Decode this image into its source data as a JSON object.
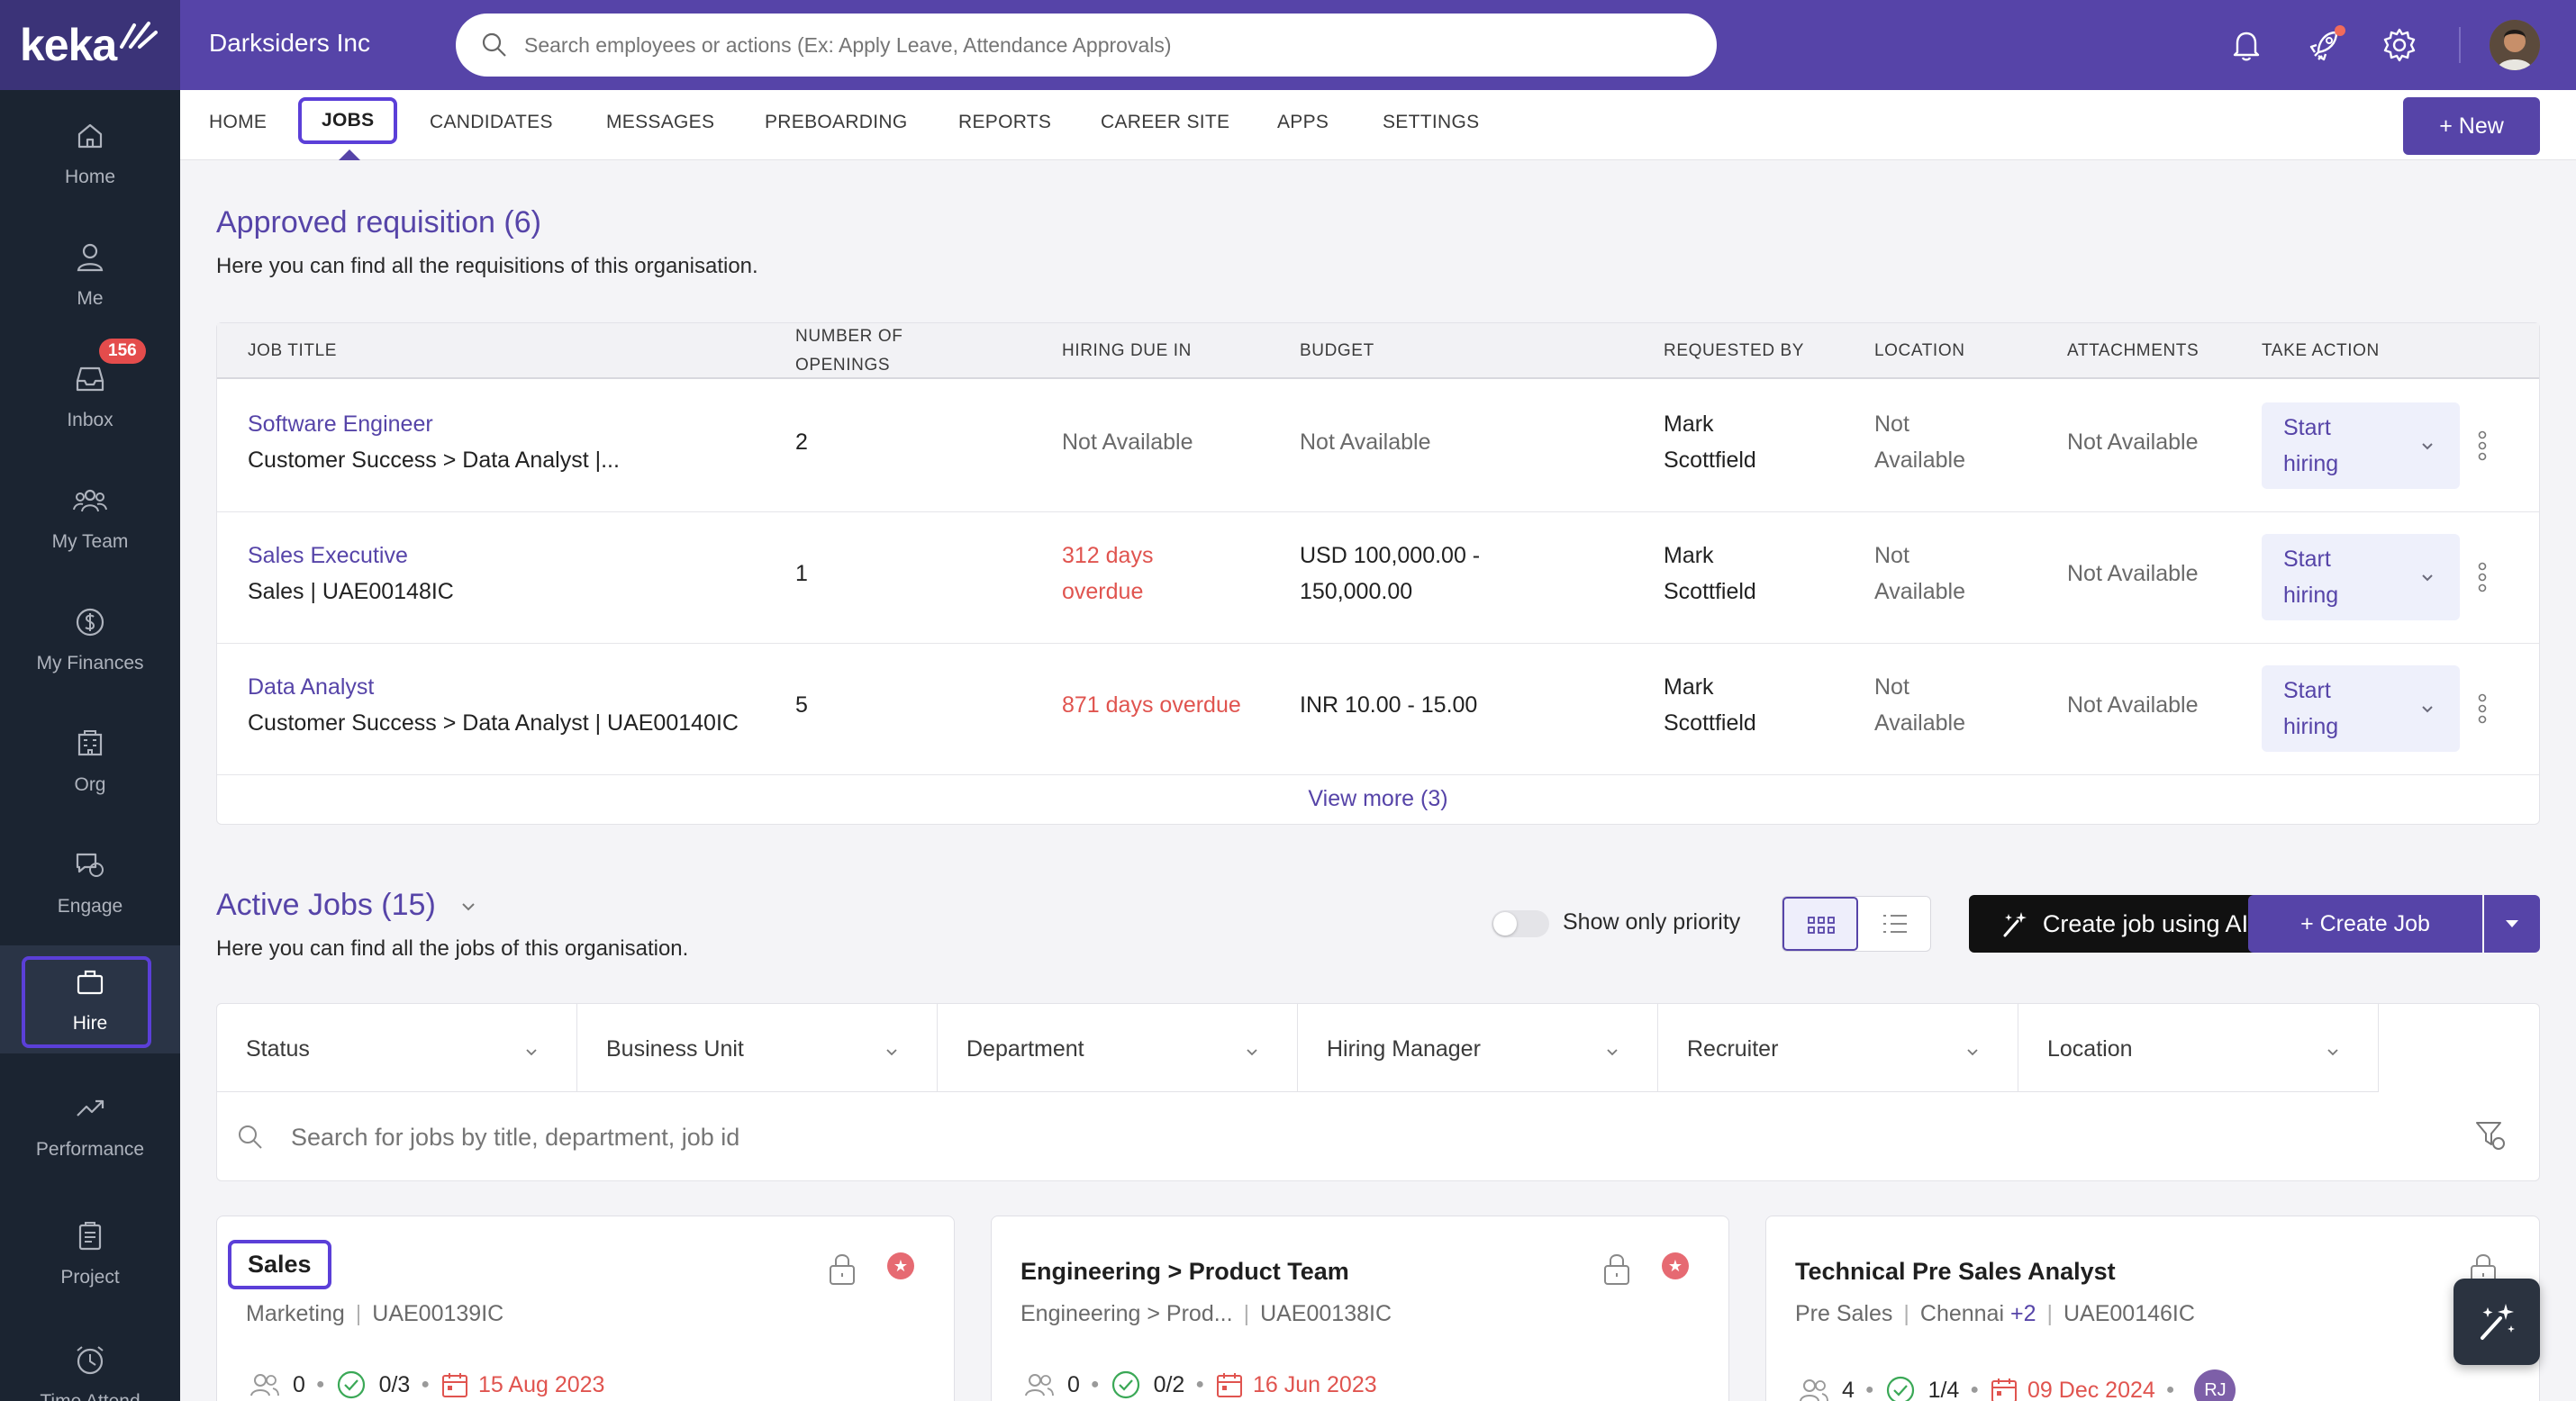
{
  "app": {
    "logo": "keka",
    "org_name": "Darksiders Inc",
    "search_placeholder": "Search employees or actions (Ex: Apply Leave, Attendance Approvals)"
  },
  "colors": {
    "brand": "#5644a8",
    "sidebar": "#1b2431",
    "overdue": "#e0544f",
    "highlight": "#5b3fd8"
  },
  "sidebar": {
    "items": [
      {
        "label": "Home",
        "icon": "home-icon"
      },
      {
        "label": "Me",
        "icon": "user-icon"
      },
      {
        "label": "Inbox",
        "icon": "inbox-icon",
        "badge": "156"
      },
      {
        "label": "My Team",
        "icon": "team-icon"
      },
      {
        "label": "My Finances",
        "icon": "dollar-icon"
      },
      {
        "label": "Org",
        "icon": "org-icon"
      },
      {
        "label": "Engage",
        "icon": "chat-icon"
      },
      {
        "label": "Hire",
        "icon": "briefcase-icon",
        "active": true
      },
      {
        "label": "Performance",
        "icon": "trend-icon"
      },
      {
        "label": "Project",
        "icon": "clipboard-icon"
      },
      {
        "label": "Time Attend",
        "icon": "clock-icon"
      }
    ]
  },
  "subnav": {
    "tabs": [
      "HOME",
      "JOBS",
      "CANDIDATES",
      "MESSAGES",
      "PREBOARDING",
      "REPORTS",
      "CAREER SITE",
      "APPS",
      "SETTINGS"
    ],
    "active": "JOBS",
    "new_label": "+ New"
  },
  "requisitions": {
    "title": "Approved requisition (6)",
    "subtitle": "Here you can find all the requisitions of this organisation.",
    "headers": {
      "job_title": "JOB TITLE",
      "openings_1": "NUMBER OF",
      "openings_2": "OPENINGS",
      "due": "HIRING DUE IN",
      "budget": "BUDGET",
      "requested": "REQUESTED BY",
      "location": "LOCATION",
      "attachments": "ATTACHMENTS",
      "action": "TAKE ACTION"
    },
    "rows": [
      {
        "title": "Software Engineer",
        "sub": "Customer Success > Data Analyst |...",
        "openings": "2",
        "due_1": "Not Available",
        "due_2": "",
        "budget_1": "Not Available",
        "budget_2": "",
        "req_1": "Mark",
        "req_2": "Scottfield",
        "loc_1": "Not",
        "loc_2": "Available",
        "attach": "Not Available",
        "action_1": "Start",
        "action_2": "hiring"
      },
      {
        "title": "Sales Executive",
        "sub": "Sales | UAE00148IC",
        "openings": "1",
        "due_1": "312 days",
        "due_2": "overdue",
        "budget_1": "USD 100,000.00 -",
        "budget_2": "150,000.00",
        "req_1": "Mark",
        "req_2": "Scottfield",
        "loc_1": "Not",
        "loc_2": "Available",
        "attach": "Not Available",
        "action_1": "Start",
        "action_2": "hiring"
      },
      {
        "title": "Data Analyst",
        "sub": "Customer Success > Data Analyst | UAE00140IC",
        "openings": "5",
        "due_1": "871 days overdue",
        "due_2": "",
        "budget_1": "INR 10.00 - 15.00",
        "budget_2": "",
        "req_1": "Mark",
        "req_2": "Scottfield",
        "loc_1": "Not",
        "loc_2": "Available",
        "attach": "Not Available",
        "action_1": "Start",
        "action_2": "hiring"
      }
    ],
    "view_more": "View more (3)"
  },
  "active_jobs": {
    "title": "Active Jobs (15)",
    "subtitle": "Here you can find all the jobs of this organisation.",
    "priority_label": "Show only priority",
    "ai_button": "Create job using AI",
    "create_button": "+ Create Job",
    "filters": [
      "Status",
      "Business Unit",
      "Department",
      "Hiring Manager",
      "Recruiter",
      "Location"
    ],
    "search_placeholder": "Search for jobs by title, department, job id",
    "cards": [
      {
        "title": "Sales",
        "dept": "Marketing",
        "id": "UAE00139IC",
        "extra": "",
        "candidates": "0",
        "progress": "0/3",
        "date": "15 Aug 2023"
      },
      {
        "title": "Engineering > Product Team",
        "dept": "Engineering > Prod...",
        "id": "UAE00138IC",
        "extra": "",
        "candidates": "0",
        "progress": "0/2",
        "date": "16 Jun 2023"
      },
      {
        "title": "Technical Pre Sales Analyst",
        "dept": "Pre Sales",
        "location": "Chennai",
        "extra": "+2",
        "id": "UAE00146IC",
        "candidates": "4",
        "progress": "1/4",
        "date": "09 Dec 2024",
        "avatar": "RJ"
      }
    ]
  }
}
